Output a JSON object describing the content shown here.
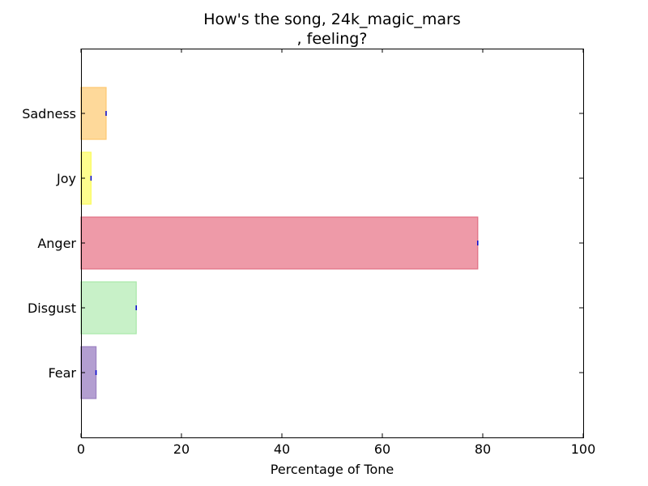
{
  "chart_data": {
    "type": "bar",
    "orientation": "horizontal",
    "title_lines": [
      "How's the song, 24k_magic_mars",
      ", feeling?"
    ],
    "xlabel": "Percentage of Tone",
    "ylabel": "",
    "xlim": [
      0,
      100
    ],
    "xticks": [
      0,
      20,
      40,
      60,
      80,
      100
    ],
    "categories": [
      "Fear",
      "Disgust",
      "Anger",
      "Joy",
      "Sadness"
    ],
    "values": [
      3,
      11,
      79,
      2,
      5
    ],
    "colors": [
      "#b39ed1",
      "#c8f1c8",
      "#ee9aa8",
      "#fefe8e",
      "#fed99a"
    ],
    "edge_colors": [
      "#9c82c2",
      "#a8e8a8",
      "#e06f83",
      "#fbfb60",
      "#fec870"
    ],
    "error_marker_color": "#0000cc",
    "grid": false,
    "legend": "none"
  }
}
